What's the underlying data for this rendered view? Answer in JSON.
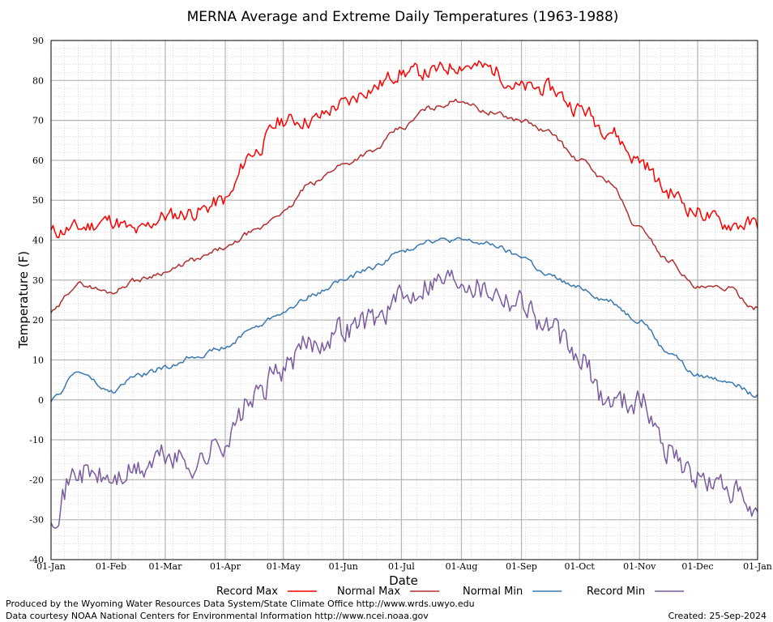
{
  "chart_data": {
    "type": "line",
    "title": "MERNA Average and Extreme Daily Temperatures (1963-1988)",
    "xlabel": "Date",
    "ylabel": "Temperature (F)",
    "ylim": [
      -40,
      90
    ],
    "y_ticks": [
      -40,
      -30,
      -20,
      -10,
      0,
      10,
      20,
      30,
      40,
      50,
      60,
      70,
      80,
      90
    ],
    "x_tick_labels": [
      "01-Jan",
      "01-Feb",
      "01-Mar",
      "01-Apr",
      "01-May",
      "01-Jun",
      "01-Jul",
      "01-Aug",
      "01-Sep",
      "01-Oct",
      "01-Nov",
      "01-Dec",
      "01-Jan"
    ],
    "x_tick_days": [
      1,
      32,
      60,
      91,
      121,
      152,
      182,
      213,
      244,
      274,
      305,
      335,
      366
    ],
    "x_unit": "day of year",
    "grid": true,
    "legend_position": "bottom",
    "series": [
      {
        "name": "Record Max",
        "color": "#ff0000",
        "days": [
          1,
          15,
          32,
          45,
          60,
          75,
          91,
          105,
          121,
          135,
          152,
          166,
          182,
          196,
          213,
          227,
          244,
          258,
          274,
          288,
          305,
          320,
          335,
          350,
          366
        ],
        "values": [
          42,
          43,
          45,
          42,
          46,
          47,
          50,
          62,
          70,
          70,
          74,
          78,
          82,
          82,
          84,
          83,
          78,
          78,
          73,
          68,
          60,
          52,
          47,
          44,
          44
        ]
      },
      {
        "name": "Normal Max",
        "color": "#b03030",
        "days": [
          1,
          15,
          32,
          45,
          60,
          75,
          91,
          105,
          121,
          135,
          152,
          166,
          182,
          196,
          213,
          227,
          244,
          258,
          274,
          288,
          305,
          320,
          335,
          350,
          366
        ],
        "values": [
          22,
          29,
          27,
          30,
          32,
          35,
          38,
          42,
          47,
          54,
          59,
          62,
          68,
          73,
          75,
          72,
          70,
          67,
          60,
          55,
          43,
          35,
          28,
          28,
          23
        ]
      },
      {
        "name": "Normal Min",
        "color": "#3a78b0",
        "days": [
          1,
          15,
          32,
          45,
          60,
          75,
          91,
          105,
          121,
          135,
          152,
          166,
          182,
          196,
          213,
          227,
          244,
          258,
          274,
          288,
          305,
          320,
          335,
          350,
          366
        ],
        "values": [
          0,
          7,
          2,
          6,
          8,
          11,
          13,
          18,
          22,
          26,
          30,
          33,
          37,
          40,
          40,
          39,
          36,
          31,
          28,
          25,
          20,
          12,
          6,
          5,
          1
        ]
      },
      {
        "name": "Record Min",
        "color": "#7a5aa0",
        "days": [
          1,
          15,
          32,
          45,
          60,
          75,
          91,
          105,
          121,
          135,
          152,
          166,
          182,
          196,
          213,
          227,
          244,
          258,
          274,
          288,
          305,
          320,
          335,
          350,
          366
        ],
        "values": [
          -28,
          -18,
          -20,
          -18,
          -14,
          -16,
          -10,
          0,
          8,
          14,
          18,
          20,
          25,
          30,
          31,
          28,
          25,
          18,
          10,
          0,
          0,
          -12,
          -20,
          -22,
          -30
        ]
      }
    ]
  },
  "legend": {
    "items": [
      {
        "label": "Record Max",
        "color": "#ff0000"
      },
      {
        "label": "Normal Max",
        "color": "#b03030"
      },
      {
        "label": "Normal Min",
        "color": "#3a78b0"
      },
      {
        "label": "Record Min",
        "color": "#7a5aa0"
      }
    ]
  },
  "footer": {
    "produced_by": "Produced by the Wyoming Water Resources Data System/State Climate Office http://www.wrds.uwyo.edu",
    "data_courtesy": "Data courtesy NOAA National Centers for Environmental Information http://www.ncei.noaa.gov",
    "created": "Created:  25-Sep-2024"
  }
}
